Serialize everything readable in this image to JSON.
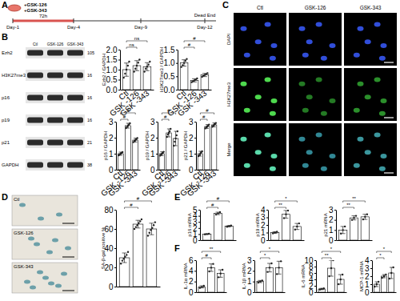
{
  "panel_labels": [
    "A",
    "B",
    "C",
    "D",
    "E",
    "F"
  ],
  "timeline": {
    "treatments": [
      "+GSK-126",
      "+GSK-343"
    ],
    "days": [
      "Day-1",
      "Day-4",
      "Day-9",
      "Day-12"
    ],
    "duration": "72h",
    "end_label": "Dead End"
  },
  "blot": {
    "columns": [
      "Ctl",
      "GSK-126",
      "GSK-343"
    ],
    "rows": [
      {
        "label": "Ezh2",
        "mw": "105"
      },
      {
        "label": "H3K27me3",
        "mw": "16"
      },
      {
        "label": "p16",
        "mw": "16"
      },
      {
        "label": "p19",
        "mw": "16"
      },
      {
        "label": "p21",
        "mw": "21"
      },
      {
        "label": "GAPDH",
        "mw": "38"
      }
    ]
  },
  "micrographs": {
    "columns": [
      "Ctl",
      "GSK-126",
      "GSK-343"
    ],
    "rows": [
      "DAPI",
      "H3K27me3",
      "Merge"
    ]
  },
  "sa_images": {
    "labels": [
      "Ctl",
      "GSK-126",
      "GSK-343"
    ]
  },
  "chart_data": [
    {
      "type": "bar",
      "ylabel": "Ezh2 / GAPDH",
      "categories": [
        "Ctl",
        "GSK -126",
        "GSK -343"
      ],
      "values": [
        1.0,
        1.2,
        1.15
      ],
      "errors": [
        0.33,
        0.25,
        0.2
      ],
      "points": [
        [
          0.6,
          0.8,
          1.0,
          1.2,
          1.4
        ],
        [
          0.9,
          1.05,
          1.2,
          1.35,
          1.5
        ],
        [
          0.9,
          1.05,
          1.15,
          1.25,
          1.4
        ]
      ],
      "ylim": [
        0,
        2
      ],
      "yticks": [
        {
          "value": 0,
          "label": "0.0"
        },
        0.5,
        {
          "value": 1,
          "label": "1.0"
        },
        1.5,
        {
          "value": 2,
          "label": "2.0"
        }
      ],
      "color": "#ffffff",
      "annotations": [
        "ns",
        "ns"
      ]
    },
    {
      "type": "bar",
      "ylabel": "H3K27me3 / GAPDH",
      "categories": [
        "Ctl",
        "GSK -126",
        "GSK -343"
      ],
      "values": [
        1.0,
        0.35,
        0.55
      ],
      "errors": [
        0.12,
        0.06,
        0.06
      ],
      "points": [
        [
          0.85,
          0.92,
          1.0,
          1.08,
          1.15
        ],
        [
          0.28,
          0.32,
          0.35,
          0.38,
          0.42
        ],
        [
          0.48,
          0.52,
          0.55,
          0.58,
          0.62
        ]
      ],
      "ylim": [
        0,
        1.5
      ],
      "yticks": [
        {
          "value": 0,
          "label": "0.0"
        },
        0.5,
        {
          "value": 1,
          "label": "1.0"
        },
        1.5
      ],
      "color": "#ffffff",
      "annotations": [
        "#",
        "#"
      ]
    },
    {
      "type": "bar",
      "ylabel": "p16 / GAPDH",
      "categories": [
        "Ctl",
        "GSK -126",
        "GSK -343"
      ],
      "values": [
        1.0,
        2.75,
        1.85
      ],
      "errors": [
        0.1,
        0.15,
        0.12
      ],
      "points": [
        [
          0.9,
          0.95,
          1.0,
          1.05,
          1.1
        ],
        [
          2.6,
          2.68,
          2.75,
          2.82,
          2.9
        ],
        [
          1.72,
          1.8,
          1.85,
          1.9,
          1.98
        ]
      ],
      "ylim": [
        0,
        3
      ],
      "yticks": [
        0,
        1,
        2,
        3
      ],
      "color": "#ffffff",
      "annotations": [
        "#",
        "#"
      ]
    },
    {
      "type": "bar",
      "ylabel": "p19 / GAPDH",
      "categories": [
        "Ctl",
        "GSK -126",
        "GSK -343"
      ],
      "values": [
        1.0,
        2.3,
        1.95
      ],
      "errors": [
        0.12,
        0.25,
        0.45
      ],
      "points": [
        [
          0.88,
          0.95,
          1.0,
          1.05,
          1.12
        ],
        [
          2.05,
          2.2,
          2.3,
          2.4,
          2.55
        ],
        [
          1.5,
          1.75,
          1.95,
          2.15,
          2.4
        ]
      ],
      "ylim": [
        0,
        3
      ],
      "yticks": [
        0,
        1,
        2,
        3
      ],
      "color": "#ffffff",
      "annotations": [
        "#",
        "#"
      ]
    },
    {
      "type": "bar",
      "ylabel": "p21 / GAPDH",
      "categories": [
        "Ctl",
        "GSK -126",
        "GSK -343"
      ],
      "values": [
        1.0,
        2.7,
        2.8
      ],
      "errors": [
        0.15,
        0.12,
        0.12
      ],
      "points": [
        [
          0.85,
          0.92,
          1.0,
          1.08,
          1.15
        ],
        [
          2.58,
          2.65,
          2.7,
          2.75,
          2.82
        ],
        [
          2.68,
          2.75,
          2.8,
          2.85,
          2.92
        ]
      ],
      "ylim": [
        0,
        3
      ],
      "yticks": [
        0,
        1,
        2,
        3
      ],
      "color": "#ffffff",
      "annotations": [
        "#",
        "#"
      ]
    },
    {
      "type": "bar",
      "ylabel": "SA-β-gal positive %",
      "categories": [
        null,
        null,
        null
      ],
      "values": [
        30,
        65,
        60
      ],
      "errors": [
        5,
        4,
        6
      ],
      "points": [
        [
          24,
          27,
          29,
          31,
          33,
          36
        ],
        [
          60,
          62,
          64,
          66,
          68,
          70
        ],
        [
          53,
          56,
          59,
          61,
          64,
          67
        ]
      ],
      "ylim": [
        0,
        80
      ],
      "yticks": [
        0,
        20,
        40,
        60,
        80
      ],
      "color": "#ffffff",
      "annotations": [
        "#",
        "#"
      ]
    },
    {
      "type": "bar",
      "ylabel": "p16 mRNA",
      "categories": [
        null,
        null,
        null
      ],
      "values": [
        1.0,
        4.4,
        2.3
      ],
      "errors": [
        0.05,
        0.2,
        0.1
      ],
      "points": [
        [
          0.95,
          1.0,
          1.05
        ],
        [
          4.2,
          4.4,
          4.6
        ],
        [
          2.2,
          2.3,
          2.4
        ]
      ],
      "ylim": [
        0,
        5
      ],
      "yticks": [
        0,
        1,
        2,
        3,
        4,
        5
      ],
      "color": "#ffffff",
      "annotations": [
        "#",
        "#"
      ]
    },
    {
      "type": "bar",
      "ylabel": "p19 mRNA",
      "categories": [
        null,
        null,
        null
      ],
      "values": [
        1.0,
        3.4,
        1.8
      ],
      "errors": [
        0.1,
        0.5,
        0.4
      ],
      "points": [
        [
          0.9,
          1.0,
          1.1
        ],
        [
          2.9,
          3.4,
          3.9
        ],
        [
          1.4,
          1.8,
          2.2
        ]
      ],
      "ylim": [
        0,
        4
      ],
      "yticks": [
        0,
        1,
        2,
        3,
        4
      ],
      "color": "#ffffff",
      "annotations": [
        "**",
        "*"
      ]
    },
    {
      "type": "bar",
      "ylabel": "p21 mRNA",
      "categories": [
        null,
        null,
        null
      ],
      "values": [
        1.0,
        2.2,
        2.3
      ],
      "errors": [
        0.35,
        0.2,
        0.25
      ],
      "points": [
        [
          0.65,
          1.0,
          1.35
        ],
        [
          2.0,
          2.2,
          2.4
        ],
        [
          2.05,
          2.3,
          2.55
        ]
      ],
      "ylim": [
        0,
        3
      ],
      "yticks": [
        0,
        1,
        2,
        3
      ],
      "color": "#ffffff",
      "annotations": [
        "**",
        "**"
      ]
    },
    {
      "type": "bar",
      "ylabel": "IL-1α mRNA",
      "categories": [
        null,
        null,
        null
      ],
      "values": [
        1.0,
        4.6,
        3.5
      ],
      "errors": [
        0.2,
        0.7,
        0.7
      ],
      "points": [
        [
          0.8,
          1.0,
          1.2
        ],
        [
          3.9,
          4.6,
          5.3
        ],
        [
          2.8,
          3.5,
          4.2
        ]
      ],
      "ylim": [
        0,
        6
      ],
      "yticks": [
        0,
        2,
        4,
        6
      ],
      "color": "#ffffff",
      "annotations": [
        "#",
        "**"
      ]
    },
    {
      "type": "bar",
      "ylabel": "IL-1β mRNA",
      "categories": [
        null,
        null,
        null
      ],
      "values": [
        1.0,
        2.3,
        2.3
      ],
      "errors": [
        0.1,
        0.4,
        0.6
      ],
      "points": [
        [
          0.9,
          1.0,
          1.1
        ],
        [
          1.9,
          2.3,
          2.7
        ],
        [
          1.7,
          2.3,
          2.9
        ]
      ],
      "ylim": [
        0,
        3
      ],
      "yticks": [
        0,
        1,
        2,
        3
      ],
      "color": "#ffffff",
      "annotations": [
        "*",
        "*"
      ]
    },
    {
      "type": "bar",
      "ylabel": "IL-6 mRNA",
      "categories": [
        null,
        null,
        null
      ],
      "values": [
        1.0,
        7.5,
        4.0
      ],
      "errors": [
        0.2,
        2.5,
        1.5
      ],
      "points": [
        [
          0.8,
          1.0,
          1.2
        ],
        [
          5.0,
          7.5,
          10.0
        ],
        [
          2.5,
          4.0,
          5.5
        ]
      ],
      "ylim": [
        0,
        10
      ],
      "yticks": [
        0,
        2,
        4,
        6,
        8,
        10
      ],
      "color": "#ffffff",
      "annotations": [
        "**",
        "*"
      ]
    },
    {
      "type": "bar",
      "ylabel": "MCP-1 mRNA",
      "categories": [
        null,
        null,
        null
      ],
      "values": [
        1.0,
        2.0,
        2.4
      ],
      "errors": [
        0.3,
        0.2,
        0.7
      ],
      "points": [
        [
          0.7,
          1.0,
          1.3
        ],
        [
          1.8,
          2.0,
          2.2
        ],
        [
          1.7,
          2.4,
          3.1
        ]
      ],
      "ylim": [
        0,
        4
      ],
      "yticks": [
        0,
        1,
        2,
        3,
        4
      ],
      "color": "#ffffff",
      "annotations": [
        "*",
        "*"
      ]
    }
  ]
}
